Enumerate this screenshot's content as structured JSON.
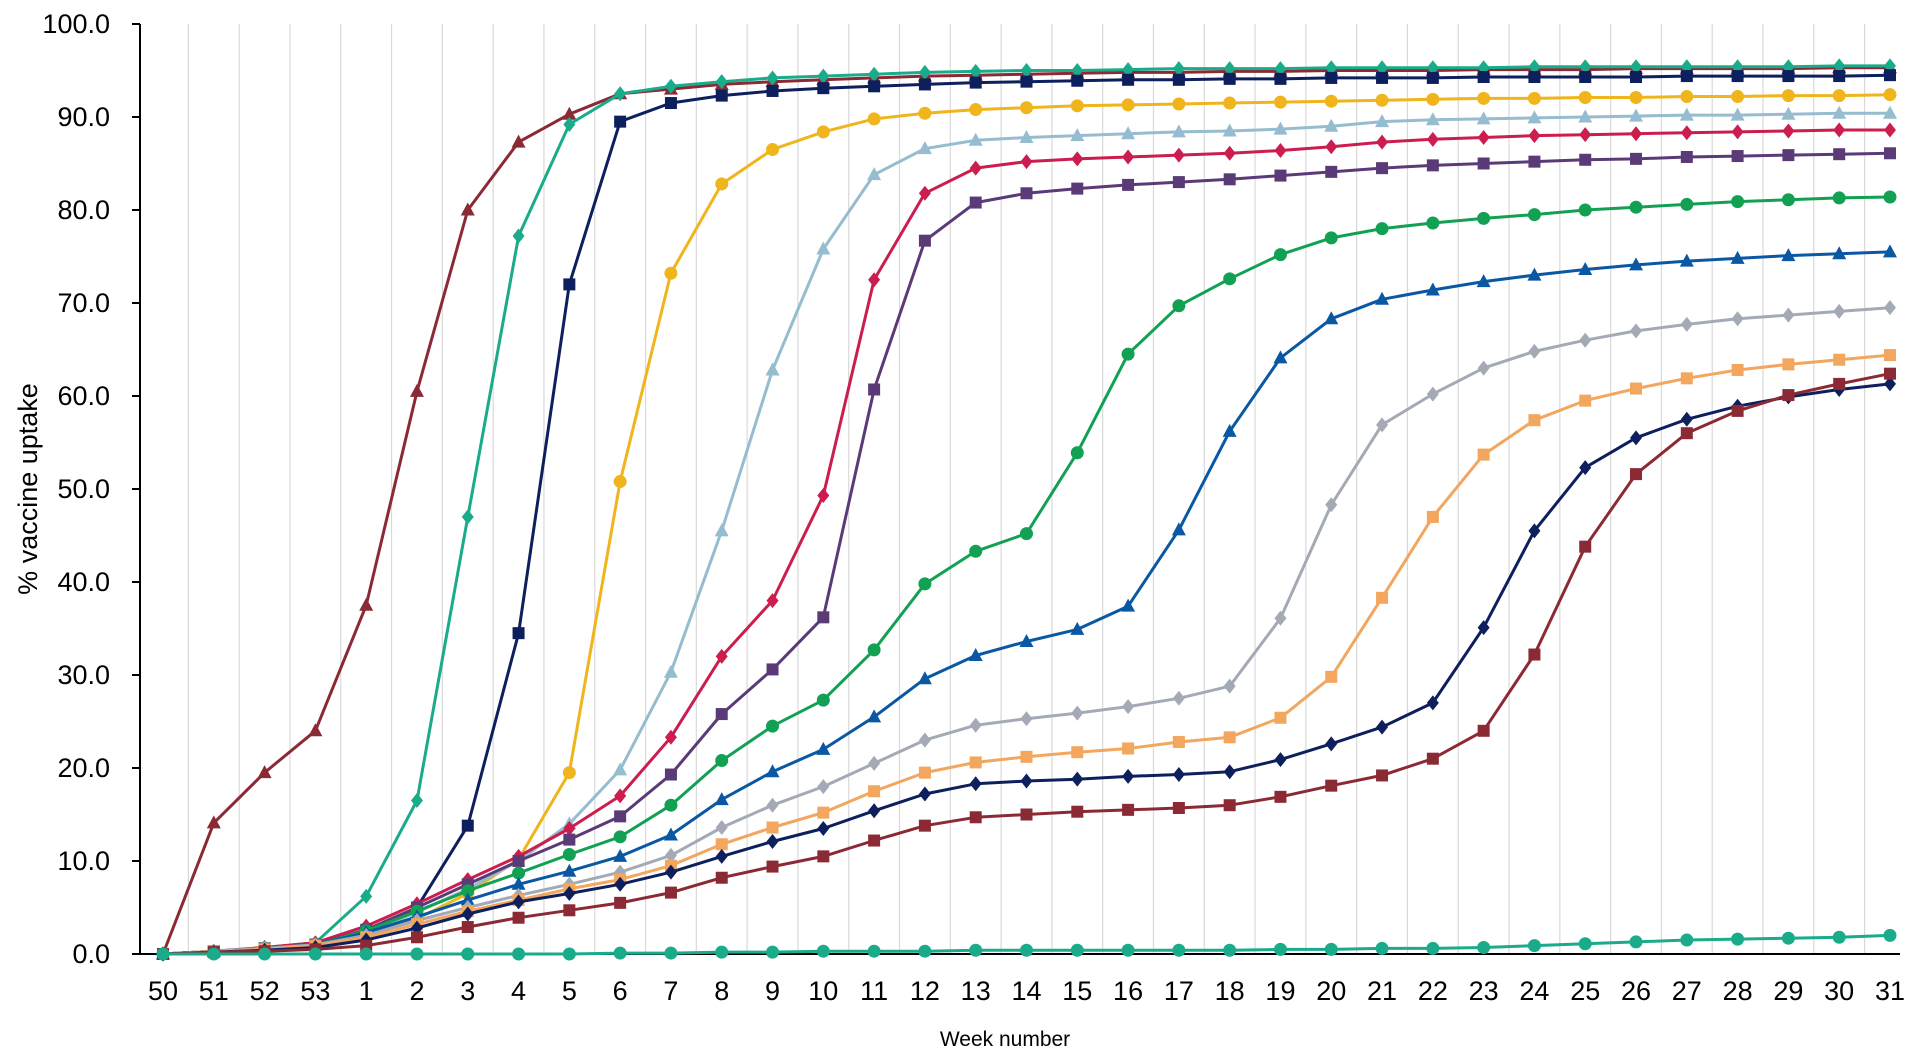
{
  "chart_data": {
    "type": "line",
    "title": "",
    "xlabel": "Week number",
    "ylabel": "% vaccine uptake",
    "ylim": [
      0,
      100
    ],
    "yticks": [
      "0.0",
      "10.0",
      "20.0",
      "30.0",
      "40.0",
      "50.0",
      "60.0",
      "70.0",
      "80.0",
      "90.0",
      "100.0"
    ],
    "x": [
      "50",
      "51",
      "52",
      "53",
      "1",
      "2",
      "3",
      "4",
      "5",
      "6",
      "7",
      "8",
      "9",
      "10",
      "11",
      "12",
      "13",
      "14",
      "15",
      "16",
      "17",
      "18",
      "19",
      "20",
      "21",
      "22",
      "23",
      "24",
      "25",
      "26",
      "27",
      "28",
      "29",
      "30",
      "31"
    ],
    "grid": "vertical",
    "legend": "none",
    "series": [
      {
        "color": "#8b2a35",
        "marker": "triangle",
        "values": [
          0.0,
          14.1,
          19.5,
          24.0,
          37.5,
          60.5,
          80.0,
          87.3,
          90.3,
          92.5,
          93.0,
          93.5,
          93.8,
          94.0,
          94.2,
          94.4,
          94.5,
          94.6,
          94.7,
          94.8,
          94.8,
          94.9,
          94.9,
          95.0,
          95.0,
          95.0,
          95.1,
          95.1,
          95.1,
          95.2,
          95.2,
          95.2,
          95.2,
          95.3,
          95.3
        ]
      },
      {
        "color": "#1aab8b",
        "marker": "diamond",
        "values": [
          0.0,
          0.3,
          0.7,
          1.2,
          6.2,
          16.5,
          47.0,
          77.2,
          89.2,
          92.5,
          93.3,
          93.8,
          94.2,
          94.4,
          94.6,
          94.8,
          94.9,
          95.0,
          95.0,
          95.1,
          95.2,
          95.2,
          95.2,
          95.3,
          95.3,
          95.3,
          95.3,
          95.4,
          95.4,
          95.4,
          95.4,
          95.4,
          95.4,
          95.5,
          95.5
        ]
      },
      {
        "color": "#0d1f5c",
        "marker": "square",
        "values": [
          0.0,
          0.3,
          0.6,
          1.0,
          2.2,
          5.0,
          13.8,
          34.5,
          72.0,
          89.5,
          91.5,
          92.3,
          92.8,
          93.1,
          93.3,
          93.5,
          93.7,
          93.8,
          93.9,
          94.0,
          94.0,
          94.1,
          94.1,
          94.2,
          94.2,
          94.2,
          94.3,
          94.3,
          94.3,
          94.3,
          94.4,
          94.4,
          94.4,
          94.4,
          94.5
        ]
      },
      {
        "color": "#f0b41c",
        "marker": "circle",
        "values": [
          0.0,
          0.3,
          0.6,
          1.0,
          2.0,
          3.8,
          6.5,
          10.2,
          19.5,
          50.8,
          73.2,
          82.8,
          86.5,
          88.4,
          89.8,
          90.4,
          90.8,
          91.0,
          91.2,
          91.3,
          91.4,
          91.5,
          91.6,
          91.7,
          91.8,
          91.9,
          92.0,
          92.0,
          92.1,
          92.1,
          92.2,
          92.2,
          92.3,
          92.3,
          92.4
        ]
      },
      {
        "color": "#96bccf",
        "marker": "triangle",
        "values": [
          0.0,
          0.3,
          0.6,
          1.0,
          2.3,
          4.5,
          7.0,
          10.0,
          14.0,
          19.8,
          30.3,
          45.5,
          62.8,
          75.8,
          83.8,
          86.6,
          87.5,
          87.8,
          88.0,
          88.2,
          88.4,
          88.5,
          88.7,
          89.0,
          89.5,
          89.7,
          89.8,
          89.9,
          90.0,
          90.1,
          90.2,
          90.2,
          90.3,
          90.4,
          90.4
        ]
      },
      {
        "color": "#cc1d4f",
        "marker": "diamond",
        "values": [
          0.0,
          0.3,
          0.7,
          1.2,
          3.0,
          5.4,
          8.0,
          10.5,
          13.5,
          17.0,
          23.3,
          32.0,
          38.0,
          49.3,
          72.5,
          81.8,
          84.5,
          85.2,
          85.5,
          85.7,
          85.9,
          86.1,
          86.4,
          86.8,
          87.3,
          87.6,
          87.8,
          88.0,
          88.1,
          88.2,
          88.3,
          88.4,
          88.5,
          88.6,
          88.6
        ]
      },
      {
        "color": "#5b3a78",
        "marker": "square",
        "values": [
          0.0,
          0.3,
          0.6,
          1.0,
          2.6,
          5.0,
          7.5,
          10.0,
          12.3,
          14.8,
          19.3,
          25.8,
          30.6,
          36.2,
          60.7,
          76.7,
          80.8,
          81.8,
          82.3,
          82.7,
          83.0,
          83.3,
          83.7,
          84.1,
          84.5,
          84.8,
          85.0,
          85.2,
          85.4,
          85.5,
          85.7,
          85.8,
          85.9,
          86.0,
          86.1
        ]
      },
      {
        "color": "#12a153",
        "marker": "circle",
        "values": [
          0.0,
          0.3,
          0.6,
          1.0,
          2.5,
          4.6,
          6.8,
          8.7,
          10.7,
          12.6,
          16.0,
          20.8,
          24.5,
          27.3,
          32.7,
          39.8,
          43.3,
          45.2,
          53.9,
          64.5,
          69.7,
          72.6,
          75.2,
          77.0,
          78.0,
          78.6,
          79.1,
          79.5,
          80.0,
          80.3,
          80.6,
          80.9,
          81.1,
          81.3,
          81.4
        ]
      },
      {
        "color": "#0a58a3",
        "marker": "triangle",
        "values": [
          0.0,
          0.3,
          0.6,
          1.0,
          2.3,
          4.0,
          5.8,
          7.5,
          8.9,
          10.5,
          12.8,
          16.6,
          19.6,
          22.0,
          25.5,
          29.6,
          32.1,
          33.6,
          34.9,
          37.4,
          45.6,
          56.2,
          64.1,
          68.3,
          70.4,
          71.4,
          72.3,
          73.0,
          73.6,
          74.1,
          74.5,
          74.8,
          75.1,
          75.3,
          75.5
        ]
      },
      {
        "color": "#a4aab5",
        "marker": "diamond",
        "values": [
          0.0,
          0.3,
          0.6,
          1.0,
          2.0,
          3.6,
          5.0,
          6.3,
          7.5,
          8.8,
          10.6,
          13.6,
          16.0,
          18.0,
          20.5,
          23.0,
          24.6,
          25.3,
          25.9,
          26.6,
          27.5,
          28.8,
          36.1,
          48.3,
          56.9,
          60.2,
          63.0,
          64.8,
          66.0,
          67.0,
          67.7,
          68.3,
          68.7,
          69.1,
          69.5
        ]
      },
      {
        "color": "#f2a65e",
        "marker": "square",
        "values": [
          0.0,
          0.3,
          0.5,
          0.9,
          1.8,
          3.2,
          4.6,
          5.8,
          7.0,
          8.0,
          9.5,
          11.8,
          13.6,
          15.2,
          17.5,
          19.5,
          20.6,
          21.2,
          21.7,
          22.1,
          22.8,
          23.3,
          25.4,
          29.8,
          38.3,
          47.0,
          53.7,
          57.4,
          59.5,
          60.8,
          61.9,
          62.8,
          63.4,
          63.9,
          64.4
        ]
      },
      {
        "color": "#0d1f5c",
        "marker": "diamond",
        "values": [
          0.0,
          0.2,
          0.4,
          0.7,
          1.5,
          2.8,
          4.3,
          5.6,
          6.5,
          7.5,
          8.8,
          10.5,
          12.1,
          13.5,
          15.4,
          17.2,
          18.3,
          18.6,
          18.8,
          19.1,
          19.3,
          19.6,
          20.9,
          22.6,
          24.4,
          27.0,
          35.1,
          45.5,
          52.3,
          55.5,
          57.5,
          58.9,
          59.9,
          60.7,
          61.3
        ]
      },
      {
        "color": "#8b2a35",
        "marker": "square",
        "values": [
          0.0,
          0.2,
          0.3,
          0.5,
          0.9,
          1.8,
          2.9,
          3.9,
          4.7,
          5.5,
          6.6,
          8.2,
          9.4,
          10.5,
          12.2,
          13.8,
          14.7,
          15.0,
          15.3,
          15.5,
          15.7,
          16.0,
          16.9,
          18.1,
          19.2,
          21.0,
          24.0,
          32.2,
          43.8,
          51.6,
          56.0,
          58.4,
          60.1,
          61.3,
          62.4
        ]
      },
      {
        "color": "#1aab8b",
        "marker": "circle",
        "values": [
          0.0,
          0.0,
          0.0,
          0.0,
          0.0,
          0.0,
          0.0,
          0.0,
          0.0,
          0.1,
          0.1,
          0.2,
          0.2,
          0.3,
          0.3,
          0.3,
          0.4,
          0.4,
          0.4,
          0.4,
          0.4,
          0.4,
          0.5,
          0.5,
          0.6,
          0.6,
          0.7,
          0.9,
          1.1,
          1.3,
          1.5,
          1.6,
          1.7,
          1.8,
          2.0
        ]
      }
    ]
  }
}
